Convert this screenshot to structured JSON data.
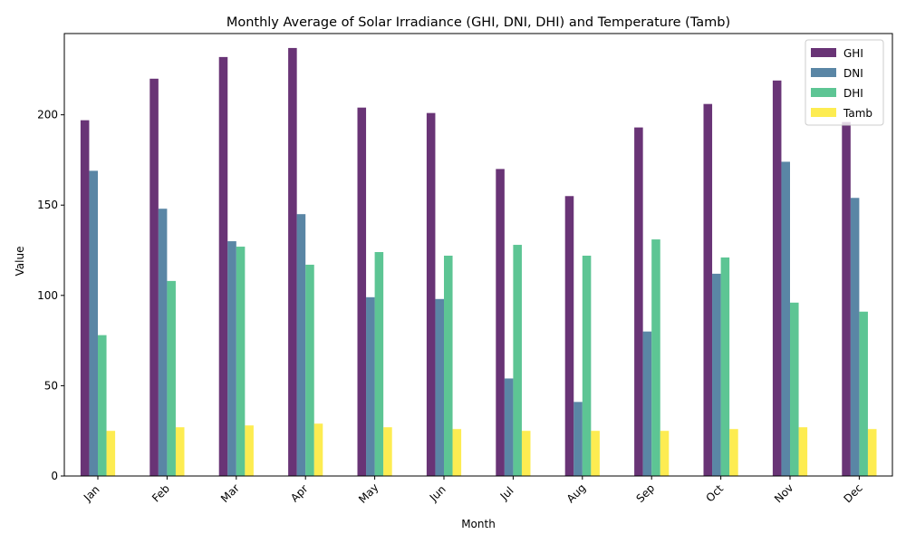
{
  "chart_data": {
    "type": "bar",
    "title": "Monthly Average of Solar Irradiance (GHI, DNI, DHI) and Temperature (Tamb)",
    "xlabel": "Month",
    "ylabel": "Value",
    "ylim": [
      0,
      245
    ],
    "yticks": [
      0,
      50,
      100,
      150,
      200
    ],
    "grid": false,
    "legend_position": "top-right",
    "categories": [
      "Jan",
      "Feb",
      "Mar",
      "Apr",
      "May",
      "Jun",
      "Jul",
      "Aug",
      "Sep",
      "Oct",
      "Nov",
      "Dec"
    ],
    "series": [
      {
        "name": "GHI",
        "color": "#440154",
        "values": [
          197,
          220,
          232,
          237,
          204,
          201,
          170,
          155,
          193,
          206,
          219,
          196
        ]
      },
      {
        "name": "DNI",
        "color": "#31688e",
        "values": [
          169,
          148,
          130,
          145,
          99,
          98,
          54,
          41,
          80,
          112,
          174,
          154
        ]
      },
      {
        "name": "DHI",
        "color": "#35b779",
        "values": [
          78,
          108,
          127,
          117,
          124,
          122,
          128,
          122,
          131,
          121,
          96,
          91
        ]
      },
      {
        "name": "Tamb",
        "color": "#fde725",
        "values": [
          25,
          27,
          28,
          29,
          27,
          26,
          25,
          25,
          25,
          26,
          27,
          26
        ]
      }
    ]
  }
}
